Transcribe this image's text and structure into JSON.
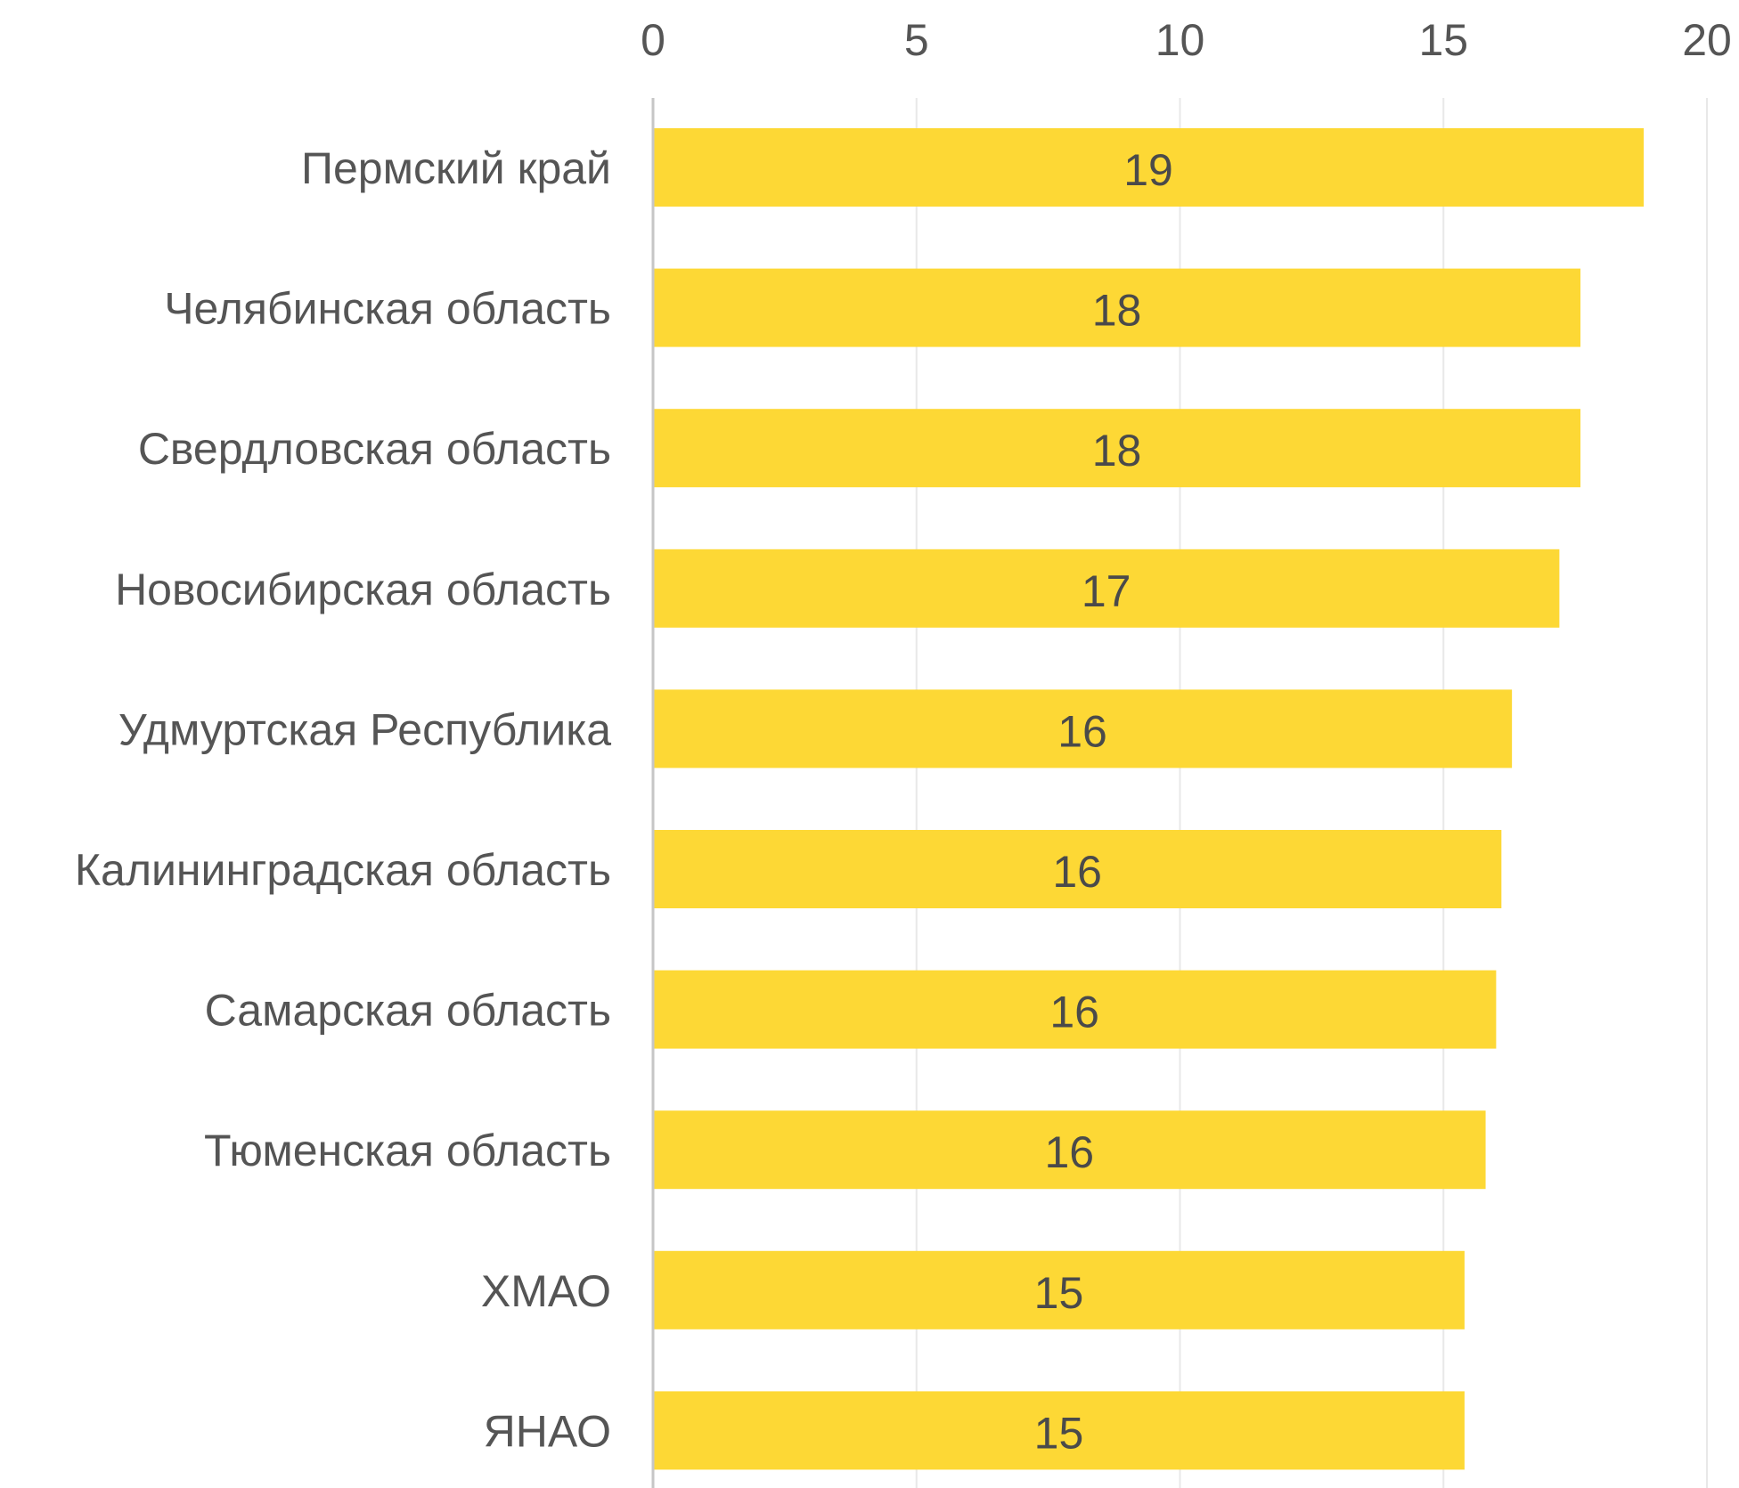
{
  "chart_data": {
    "type": "bar",
    "orientation": "horizontal",
    "categories": [
      "Пермский край",
      "Челябинская область",
      "Свердловская область",
      "Новосибирская область",
      "Удмуртская Республика",
      "Калининградская область",
      "Самарская область",
      "Тюменская область",
      "ХМАО",
      "ЯНАО"
    ],
    "values": [
      18.8,
      17.6,
      17.6,
      17.2,
      16.3,
      16.1,
      16.0,
      15.8,
      15.4,
      15.4
    ],
    "data_labels": [
      "19",
      "18",
      "18",
      "17",
      "16",
      "16",
      "16",
      "16",
      "15",
      "15"
    ],
    "xlim": [
      0,
      20
    ],
    "x_ticks": [
      0,
      5,
      10,
      15,
      20
    ],
    "x_tick_labels": [
      "0",
      "5",
      "10",
      "15",
      "20"
    ],
    "x_axis_position": "top",
    "grid": true,
    "bar_color": "#FDD835"
  }
}
